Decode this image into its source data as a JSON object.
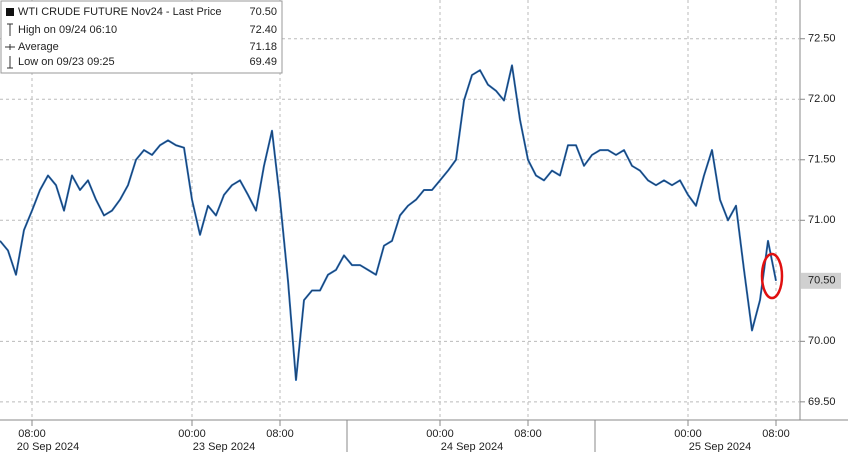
{
  "chart_data": {
    "type": "line",
    "series": [
      {
        "name": "WTI CRUDE FUTURE Nov24 - Last Price",
        "color": "#2a6ebb",
        "values": [
          70.83,
          70.75,
          70.55,
          70.92,
          71.08,
          71.25,
          71.37,
          71.29,
          71.08,
          71.37,
          71.25,
          71.33,
          71.17,
          71.04,
          71.08,
          71.17,
          71.29,
          71.5,
          71.58,
          71.54,
          71.62,
          71.66,
          71.62,
          71.6,
          71.17,
          70.88,
          71.12,
          71.04,
          71.21,
          71.29,
          71.33,
          71.21,
          71.08,
          71.45,
          71.74,
          71.17,
          70.5,
          69.68,
          70.34,
          70.42,
          70.42,
          70.55,
          70.59,
          70.71,
          70.63,
          70.63,
          70.59,
          70.55,
          70.79,
          70.83,
          71.04,
          71.12,
          71.17,
          71.25,
          71.25,
          71.33,
          71.41,
          71.5,
          71.99,
          72.2,
          72.24,
          72.12,
          72.07,
          71.99,
          72.28,
          71.83,
          71.5,
          71.37,
          71.33,
          71.41,
          71.37,
          71.62,
          71.62,
          71.45,
          71.54,
          71.58,
          71.58,
          71.54,
          71.58,
          71.45,
          71.41,
          71.33,
          71.29,
          71.33,
          71.29,
          71.33,
          71.21,
          71.12,
          71.37,
          71.58,
          71.17,
          71.0,
          71.12,
          70.59,
          70.09,
          70.34,
          70.83,
          70.5
        ]
      }
    ],
    "categories": [
      null,
      null,
      null,
      null,
      "08:00",
      null,
      null,
      null,
      null,
      null,
      null,
      null,
      null,
      null,
      null,
      null,
      null,
      null,
      null,
      null,
      null,
      null,
      null,
      null,
      "00:00",
      null,
      null,
      null,
      null,
      null,
      null,
      null,
      null,
      null,
      null,
      "08:00",
      null,
      null,
      null,
      null,
      null,
      null,
      null,
      null,
      null,
      null,
      null,
      null,
      null,
      null,
      null,
      null,
      null,
      null,
      null,
      "00:00",
      null,
      null,
      null,
      null,
      null,
      null,
      null,
      null,
      null,
      null,
      "08:00",
      null,
      null,
      null,
      null,
      null,
      null,
      null,
      null,
      null,
      null,
      null,
      null,
      null,
      null,
      null,
      null,
      null,
      null,
      null,
      "00:00",
      null,
      null,
      null,
      null,
      null,
      null,
      null,
      null,
      null,
      null,
      "08:00"
    ],
    "date_labels": [
      null,
      null,
      null,
      null,
      null,
      null,
      "20 Sep 2024",
      null,
      null,
      null,
      null,
      null,
      null,
      null,
      null,
      null,
      null,
      null,
      null,
      null,
      null,
      null,
      null,
      null,
      null,
      null,
      null,
      null,
      "23 Sep 2024",
      null,
      null,
      null,
      null,
      null,
      null,
      null,
      null,
      null,
      null,
      null,
      null,
      null,
      null,
      null,
      null,
      null,
      null,
      null,
      null,
      null,
      null,
      null,
      null,
      null,
      null,
      null,
      null,
      null,
      null,
      "24 Sep 2024",
      null,
      null,
      null,
      null,
      null,
      null,
      null,
      null,
      null,
      null,
      null,
      null,
      null,
      null,
      null,
      null,
      null,
      null,
      null,
      null,
      null,
      null,
      null,
      null,
      null,
      null,
      null,
      null,
      null,
      null,
      "25 Sep 2024",
      null,
      null,
      null,
      null,
      null,
      null,
      null
    ],
    "ylim": [
      69.35,
      72.82
    ],
    "yticks": [
      {
        "value": 69.5,
        "label": "69.50"
      },
      {
        "value": 70.0,
        "label": "70.00"
      },
      {
        "value": 71.0,
        "label": "71.00"
      },
      {
        "value": 71.5,
        "label": "71.50"
      },
      {
        "value": 72.0,
        "label": "72.00"
      },
      {
        "value": 72.5,
        "label": "72.50"
      }
    ],
    "last_price": {
      "value": 70.5,
      "label": "70.50"
    },
    "legend_stats": [
      {
        "name": "WTI CRUDE FUTURE Nov24 - Last Price",
        "value": 70.5,
        "label": "70.50"
      },
      {
        "name": "High on 09/24 06:10",
        "value": 72.4,
        "label": "72.40"
      },
      {
        "name": "Average",
        "value": 71.18,
        "label": "71.18"
      },
      {
        "name": "Low on 09/23 09:25",
        "value": 69.49,
        "label": "69.49"
      }
    ],
    "grid": true
  }
}
